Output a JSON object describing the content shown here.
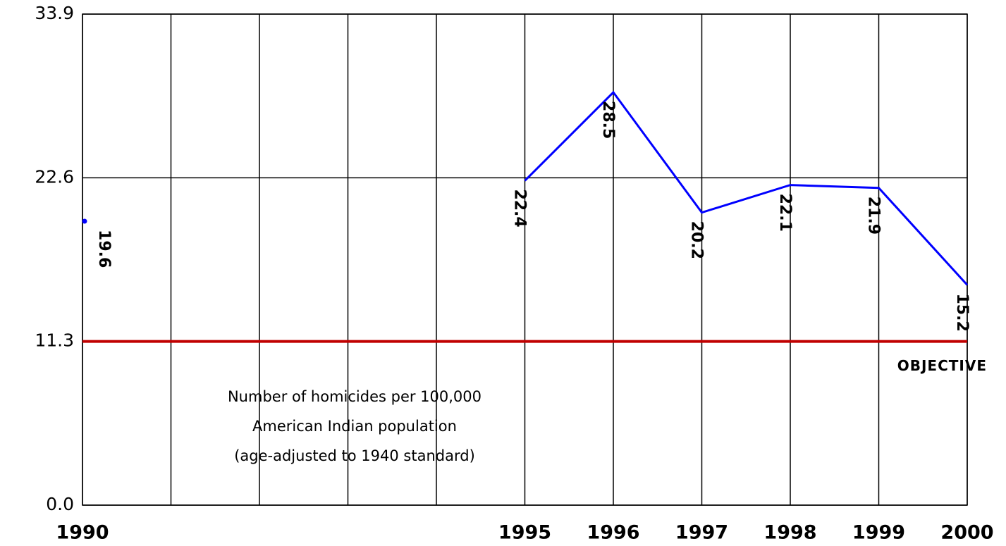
{
  "chart_data": {
    "type": "line",
    "categories": [
      "1990",
      null,
      null,
      null,
      null,
      "1995",
      "1996",
      "1997",
      "1998",
      "1999",
      "2000"
    ],
    "series": [
      {
        "color": "#0000ff",
        "values": [
          19.6,
          null,
          null,
          null,
          null,
          22.4,
          28.5,
          20.2,
          22.1,
          21.9,
          15.2
        ]
      }
    ],
    "ylim": [
      0,
      33.9
    ],
    "yticks": [
      {
        "value": 0,
        "label": "0.0"
      },
      11.3,
      22.6,
      33.9
    ],
    "grid": true,
    "objective": {
      "value": 11.3,
      "label": "OBJECTIVE",
      "color": "#c00000"
    },
    "annotation": [
      "Number of homicides per 100,000",
      "American Indian population",
      " (age-adjusted to 1940 standard)"
    ]
  }
}
